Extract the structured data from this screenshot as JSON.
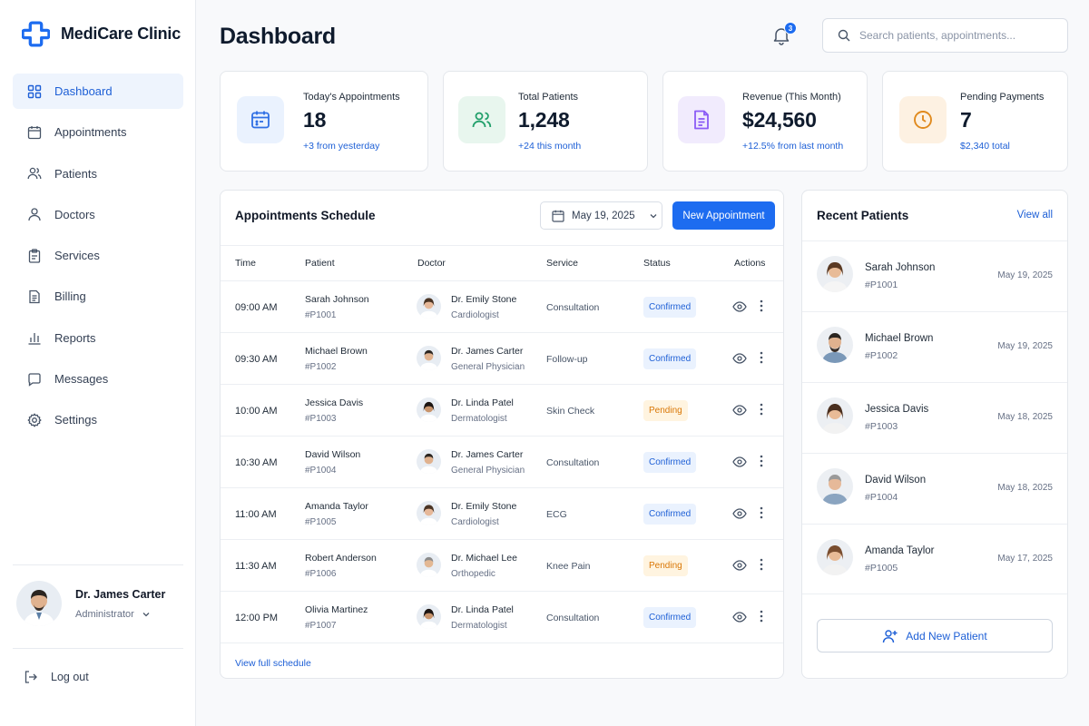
{
  "app": {
    "name": "MediCare Clinic",
    "logo_icon": "medical-cross-icon",
    "brand_color": "#1d6cf0"
  },
  "sidebar": {
    "items": [
      {
        "label": "Dashboard",
        "icon": "grid-icon",
        "active": true
      },
      {
        "label": "Appointments",
        "icon": "calendar-icon"
      },
      {
        "label": "Patients",
        "icon": "users-icon"
      },
      {
        "label": "Doctors",
        "icon": "user-icon"
      },
      {
        "label": "Services",
        "icon": "clipboard-icon"
      },
      {
        "label": "Billing",
        "icon": "invoice-icon"
      },
      {
        "label": "Reports",
        "icon": "bar-chart-icon"
      },
      {
        "label": "Messages",
        "icon": "message-icon"
      },
      {
        "label": "Settings",
        "icon": "gear-icon"
      }
    ],
    "profile": {
      "name": "Dr. James Carter",
      "role": "Administrator"
    },
    "logout_label": "Log out"
  },
  "header": {
    "title": "Dashboard",
    "notification_count": "3",
    "search_placeholder": "Search patients, appointments..."
  },
  "stats": [
    {
      "label": "Today's Appointments",
      "value": "18",
      "sub": "+3 from yesterday",
      "icon": "calendar-icon",
      "color": "#2f6fe4",
      "bg": "#eaf2fe"
    },
    {
      "label": "Total Patients",
      "value": "1,248",
      "sub": "+24 this month",
      "icon": "users-icon",
      "color": "#22a06b",
      "bg": "#e8f6ee"
    },
    {
      "label": "Revenue (This Month)",
      "value": "$24,560",
      "sub": "+12.5% from last month",
      "icon": "invoice-icon",
      "color": "#8b5cf6",
      "bg": "#f1ebfd"
    },
    {
      "label": "Pending Payments",
      "value": "7",
      "sub": "$2,340 total",
      "icon": "clock-icon",
      "color": "#e08a1e",
      "bg": "#fdf1e2"
    }
  ],
  "schedule": {
    "title": "Appointments Schedule",
    "date": "May 19, 2025",
    "new_button": "New Appointment",
    "columns": {
      "time": "Time",
      "patient": "Patient",
      "doctor": "Doctor",
      "service": "Service",
      "status": "Status",
      "actions": "Actions"
    },
    "rows": [
      {
        "time": "09:00 AM",
        "patient": "Sarah Johnson",
        "pid": "#P1001",
        "doctor": "Dr. Emily Stone",
        "spec": "Cardiologist",
        "service": "Consultation",
        "status": "Confirmed",
        "state": "confirmed"
      },
      {
        "time": "09:30 AM",
        "patient": "Michael Brown",
        "pid": "#P1002",
        "doctor": "Dr. James Carter",
        "spec": "General Physician",
        "service": "Follow-up",
        "status": "Confirmed",
        "state": "confirmed"
      },
      {
        "time": "10:00 AM",
        "patient": "Jessica Davis",
        "pid": "#P1003",
        "doctor": "Dr. Linda Patel",
        "spec": "Dermatologist",
        "service": "Skin Check",
        "status": "Pending",
        "state": "pending"
      },
      {
        "time": "10:30 AM",
        "patient": "David Wilson",
        "pid": "#P1004",
        "doctor": "Dr. James Carter",
        "spec": "General Physician",
        "service": "Consultation",
        "status": "Confirmed",
        "state": "confirmed"
      },
      {
        "time": "11:00 AM",
        "patient": "Amanda Taylor",
        "pid": "#P1005",
        "doctor": "Dr. Emily Stone",
        "spec": "Cardiologist",
        "service": "ECG",
        "status": "Confirmed",
        "state": "confirmed"
      },
      {
        "time": "11:30 AM",
        "patient": "Robert Anderson",
        "pid": "#P1006",
        "doctor": "Dr. Michael Lee",
        "spec": "Orthopedic",
        "service": "Knee Pain",
        "status": "Pending",
        "state": "pending"
      },
      {
        "time": "12:00 PM",
        "patient": "Olivia Martinez",
        "pid": "#P1007",
        "doctor": "Dr. Linda Patel",
        "spec": "Dermatologist",
        "service": "Consultation",
        "status": "Confirmed",
        "state": "confirmed"
      }
    ],
    "view_full": "View full schedule"
  },
  "recent_patients": {
    "title": "Recent Patients",
    "view_all": "View all",
    "items": [
      {
        "name": "Sarah Johnson",
        "pid": "#P1001",
        "date": "May 19, 2025"
      },
      {
        "name": "Michael Brown",
        "pid": "#P1002",
        "date": "May 19, 2025"
      },
      {
        "name": "Jessica Davis",
        "pid": "#P1003",
        "date": "May 18, 2025"
      },
      {
        "name": "David Wilson",
        "pid": "#P1004",
        "date": "May 18, 2025"
      },
      {
        "name": "Amanda Taylor",
        "pid": "#P1005",
        "date": "May 17, 2025"
      }
    ],
    "add_button": "Add New Patient"
  }
}
